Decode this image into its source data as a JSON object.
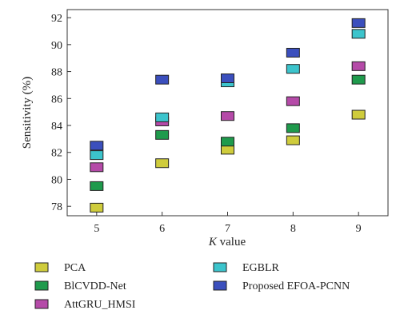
{
  "chart_data": {
    "type": "scatter",
    "xlabel_italic": "K",
    "xlabel_rest": " value",
    "ylabel": "Sensitivity (%)",
    "x": [
      5,
      6,
      7,
      8,
      9
    ],
    "xlim": [
      4.55,
      9.45
    ],
    "ylim": [
      77.3,
      92.6
    ],
    "yticks": [
      78,
      80,
      82,
      84,
      86,
      88,
      90,
      92
    ],
    "grid": false,
    "legend_position": "bottom",
    "series": [
      {
        "name": "PCA",
        "color": "#cfcc3c",
        "values": [
          77.9,
          81.2,
          82.2,
          82.9,
          84.8
        ]
      },
      {
        "name": "BlCVDD-Net",
        "color": "#1f9a4c",
        "values": [
          79.5,
          83.3,
          82.8,
          83.8,
          87.4
        ]
      },
      {
        "name": "AttGRU_HMSI",
        "color": "#b54aa8",
        "values": [
          80.9,
          84.3,
          84.7,
          85.8,
          88.4
        ]
      },
      {
        "name": "EGBLR",
        "color": "#3cc4cc",
        "values": [
          81.8,
          84.6,
          87.2,
          88.2,
          90.8
        ]
      },
      {
        "name": "Proposed EFOA-PCNN",
        "color": "#3b4fbd",
        "values": [
          82.5,
          87.4,
          87.5,
          89.4,
          91.6
        ]
      }
    ]
  }
}
